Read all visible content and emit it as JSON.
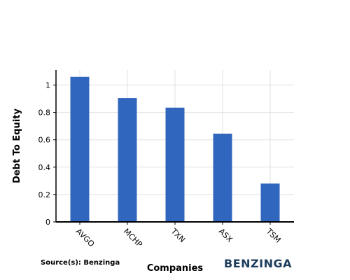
{
  "chart_data": {
    "type": "bar",
    "categories": [
      "AVGO",
      "MCHP",
      "TXN",
      "ASX",
      "TSM"
    ],
    "values": [
      1.06,
      0.905,
      0.835,
      0.645,
      0.28
    ],
    "xlabel": "Companies",
    "ylabel": "Debt To Equity",
    "ylim": [
      0,
      1.11
    ],
    "yticks": [
      0,
      0.2,
      0.4,
      0.6,
      0.8,
      1
    ],
    "ytick_labels": [
      "0",
      "0.2",
      "0.4",
      "0.6",
      "0.8",
      "1"
    ],
    "grid": true,
    "bar_color": "#3066be"
  },
  "source": "Source(s): Benzinga",
  "brand": "BENZINGA"
}
